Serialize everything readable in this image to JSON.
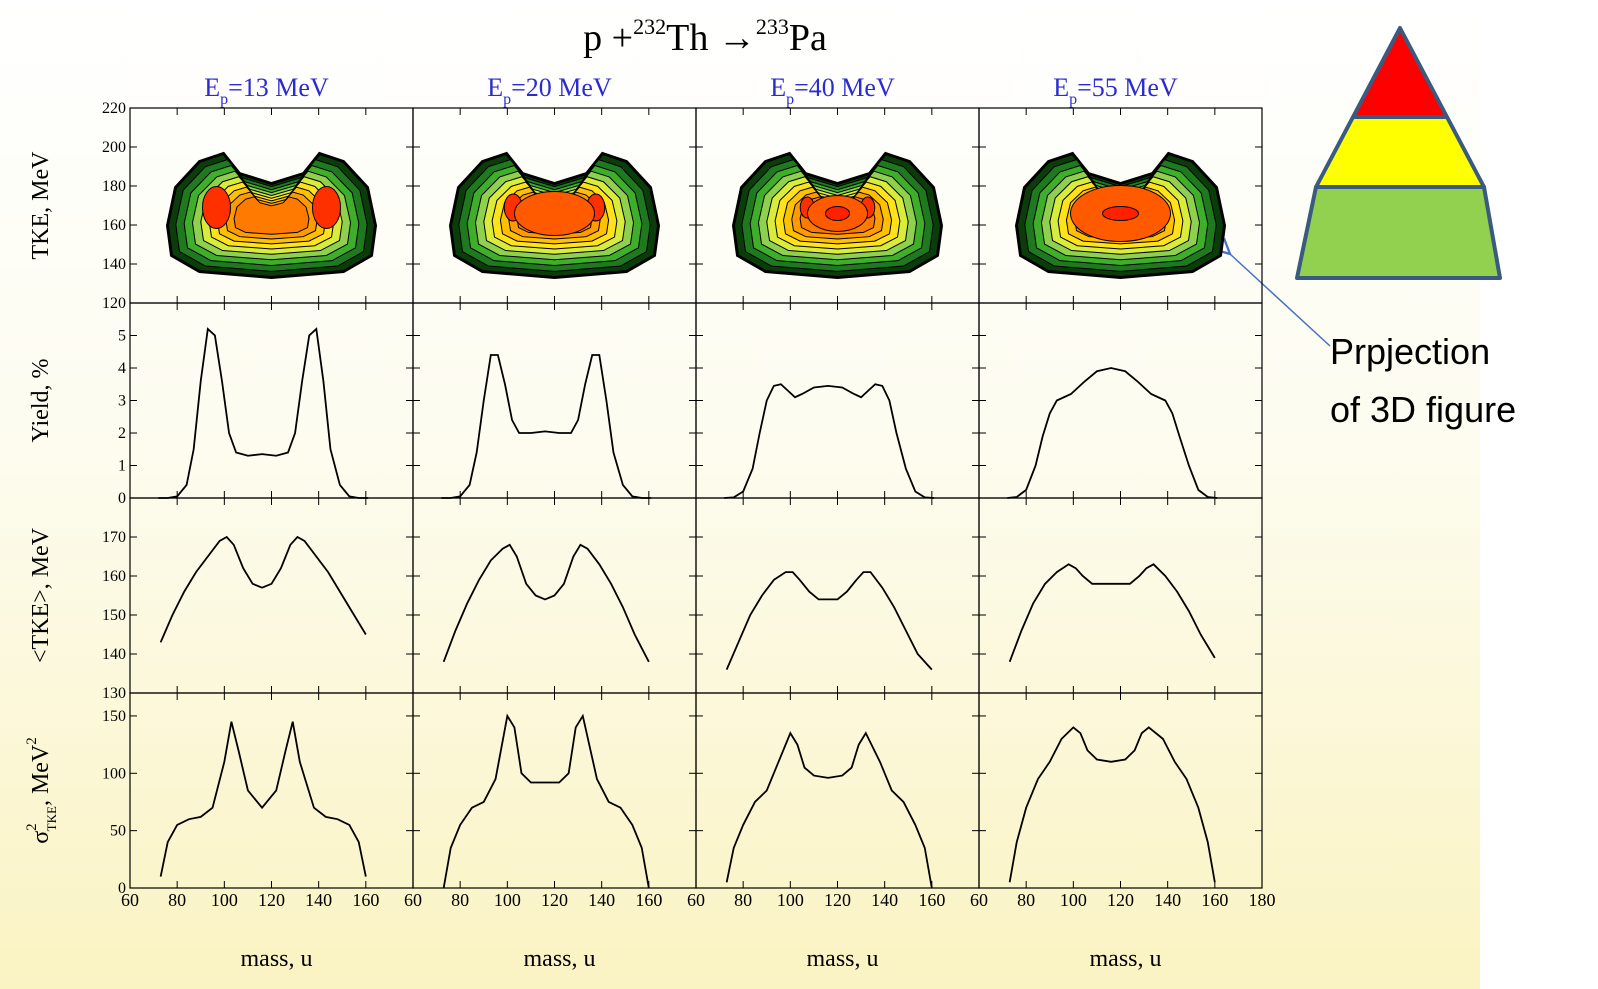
{
  "chart_data": {
    "type": "panel-grid",
    "title": [
      "p +",
      "232",
      "Th →",
      "233",
      "Pa"
    ],
    "columns": [
      {
        "header": [
          "E",
          "p",
          "=13 MeV"
        ],
        "xlim": [
          60,
          180
        ],
        "xticks": [
          60,
          80,
          100,
          120,
          140,
          160
        ],
        "xlabel": "mass, u"
      },
      {
        "header": [
          "E",
          "p",
          "=20 MeV"
        ],
        "xlim": [
          60,
          180
        ],
        "xticks": [
          60,
          80,
          100,
          120,
          140,
          160
        ],
        "xlabel": "mass, u"
      },
      {
        "header": [
          "E",
          "p",
          "=40 MeV"
        ],
        "xlim": [
          60,
          180
        ],
        "xticks": [
          60,
          80,
          100,
          120,
          140,
          160
        ],
        "xlabel": "mass, u"
      },
      {
        "header": [
          "E",
          "p",
          "=55 MeV"
        ],
        "xlim": [
          60,
          180
        ],
        "xticks": [
          60,
          80,
          100,
          120,
          140,
          160,
          180
        ],
        "xlabel": "mass, u"
      }
    ],
    "rows": [
      {
        "type": "contour",
        "label": "TKE, MeV",
        "ylim": [
          120,
          220
        ],
        "yticks": [
          120,
          140,
          160,
          180,
          200,
          220
        ]
      },
      {
        "type": "line",
        "label": "Yield, %",
        "ylim": [
          0,
          6
        ],
        "yticks": [
          0,
          1,
          2,
          3,
          4,
          5
        ],
        "x": [
          72,
          76,
          80,
          84,
          87,
          90,
          93,
          96,
          99,
          102,
          105,
          110,
          116,
          122,
          127,
          130,
          133,
          136,
          139,
          142,
          145,
          149,
          153,
          157,
          161
        ],
        "panels": [
          {
            "values": [
              0,
              0,
              0.05,
              0.4,
              1.5,
              3.6,
              5.2,
              5.0,
              3.6,
              2.0,
              1.4,
              1.3,
              1.35,
              1.3,
              1.4,
              2.0,
              3.6,
              5.0,
              5.2,
              3.6,
              1.5,
              0.4,
              0.05,
              0,
              0
            ]
          },
          {
            "values": [
              0,
              0,
              0.05,
              0.4,
              1.4,
              3.0,
              4.4,
              4.4,
              3.5,
              2.4,
              2.0,
              2.0,
              2.05,
              2.0,
              2.0,
              2.4,
              3.5,
              4.4,
              4.4,
              3.0,
              1.4,
              0.4,
              0.05,
              0,
              0
            ]
          },
          {
            "values": [
              0,
              0.02,
              0.2,
              0.9,
              2.0,
              3.0,
              3.45,
              3.5,
              3.3,
              3.1,
              3.2,
              3.4,
              3.45,
              3.4,
              3.2,
              3.1,
              3.3,
              3.5,
              3.45,
              3.0,
              2.0,
              0.9,
              0.2,
              0.02,
              0
            ]
          },
          {
            "values": [
              0,
              0.03,
              0.25,
              1.0,
              1.9,
              2.6,
              3.0,
              3.1,
              3.2,
              3.4,
              3.6,
              3.9,
              4.0,
              3.9,
              3.6,
              3.4,
              3.2,
              3.1,
              3.0,
              2.6,
              1.9,
              1.0,
              0.25,
              0.03,
              0
            ]
          }
        ]
      },
      {
        "type": "line",
        "label": "<TKE>, MeV",
        "ylim": [
          130,
          180
        ],
        "yticks": [
          130,
          140,
          150,
          160,
          170
        ],
        "x": [
          73,
          78,
          83,
          88,
          93,
          98,
          101,
          104,
          108,
          112,
          116,
          120,
          124,
          128,
          131,
          134,
          139,
          144,
          149,
          154,
          160
        ],
        "panels": [
          {
            "values": [
              143,
              150,
              156,
              161,
              165,
              169,
              170,
              168,
              162,
              158,
              157,
              158,
              162,
              168,
              170,
              169,
              165,
              161,
              156,
              151,
              145
            ]
          },
          {
            "values": [
              138,
              146,
              153,
              159,
              164,
              167,
              168,
              165,
              158,
              155,
              154,
              155,
              158,
              165,
              168,
              167,
              163,
              158,
              152,
              145,
              138
            ]
          },
          {
            "values": [
              136,
              143,
              150,
              155,
              159,
              161,
              161,
              159,
              156,
              154,
              154,
              154,
              156,
              159,
              161,
              161,
              157,
              152,
              146,
              140,
              136
            ]
          },
          {
            "values": [
              138,
              146,
              153,
              158,
              161,
              163,
              162,
              160,
              158,
              158,
              158,
              158,
              158,
              160,
              162,
              163,
              160,
              156,
              151,
              145,
              139
            ]
          }
        ]
      },
      {
        "type": "line",
        "label": {
          "symbol": "σ",
          "sup": "2",
          "sub": "TKE",
          "unit": ", MeV",
          "unit_sup": "2"
        },
        "ylim": [
          0,
          170
        ],
        "yticks": [
          0,
          50,
          100,
          150
        ],
        "x": [
          73,
          76,
          80,
          85,
          90,
          95,
          100,
          103,
          106,
          110,
          116,
          122,
          126,
          129,
          132,
          138,
          143,
          148,
          153,
          157,
          160
        ],
        "panels": [
          {
            "values": [
              10,
              40,
              55,
              60,
              62,
              70,
              110,
              145,
              120,
              85,
              70,
              85,
              120,
              145,
              110,
              70,
              62,
              60,
              55,
              40,
              10
            ]
          },
          {
            "values": [
              0,
              35,
              55,
              70,
              75,
              95,
              150,
              140,
              100,
              92,
              92,
              92,
              100,
              140,
              150,
              95,
              75,
              70,
              55,
              35,
              0
            ]
          },
          {
            "values": [
              5,
              35,
              55,
              75,
              85,
              110,
              135,
              125,
              105,
              98,
              96,
              98,
              105,
              125,
              135,
              110,
              85,
              75,
              55,
              35,
              0
            ]
          },
          {
            "values": [
              5,
              40,
              70,
              95,
              110,
              130,
              140,
              135,
              120,
              112,
              110,
              112,
              120,
              135,
              140,
              130,
              110,
              95,
              70,
              40,
              5
            ]
          }
        ]
      }
    ],
    "annotation": [
      "Prpjection",
      "of 3D figure"
    ]
  }
}
